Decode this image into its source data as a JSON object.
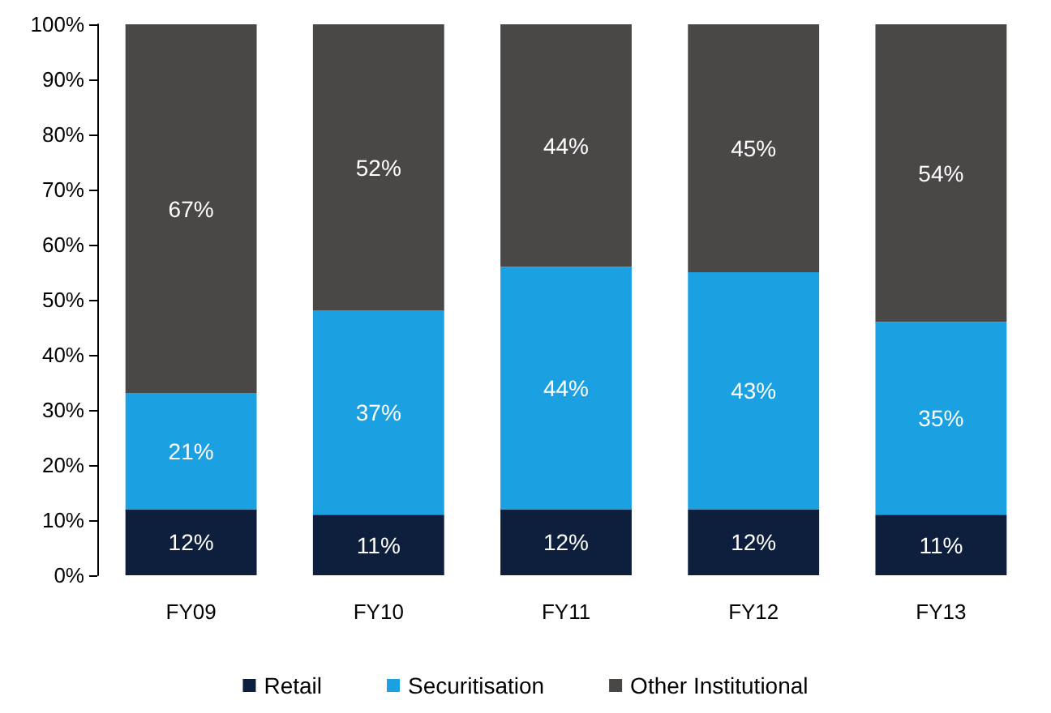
{
  "chart_data": {
    "type": "bar",
    "stacked": true,
    "categories": [
      "FY09",
      "FY10",
      "FY11",
      "FY12",
      "FY13"
    ],
    "series": [
      {
        "name": "Retail",
        "color": "#0d1f3c",
        "values": [
          12,
          11,
          12,
          12,
          11
        ],
        "value_labels": [
          "12%",
          "11%",
          "12%",
          "12%",
          "11%"
        ]
      },
      {
        "name": "Securitisation",
        "color": "#1ba1e2",
        "values": [
          21,
          37,
          44,
          43,
          35
        ],
        "value_labels": [
          "21%",
          "37%",
          "44%",
          "43%",
          "35%"
        ]
      },
      {
        "name": "Other Institutional",
        "color": "#4a4747",
        "values": [
          67,
          52,
          44,
          45,
          54
        ],
        "value_labels": [
          "67%",
          "52%",
          "44%",
          "45%",
          "54%"
        ]
      }
    ],
    "ylim": [
      0,
      100
    ],
    "yticks": [
      {
        "value": 0,
        "label": "0%"
      },
      {
        "value": 10,
        "label": "10%"
      },
      {
        "value": 20,
        "label": "20%"
      },
      {
        "value": 30,
        "label": "30%"
      },
      {
        "value": 40,
        "label": "40%"
      },
      {
        "value": 50,
        "label": "50%"
      },
      {
        "value": 60,
        "label": "60%"
      },
      {
        "value": 70,
        "label": "70%"
      },
      {
        "value": 80,
        "label": "80%"
      },
      {
        "value": 90,
        "label": "90%"
      },
      {
        "value": 100,
        "label": "100%"
      }
    ],
    "grid": false,
    "legend": "bottom"
  }
}
